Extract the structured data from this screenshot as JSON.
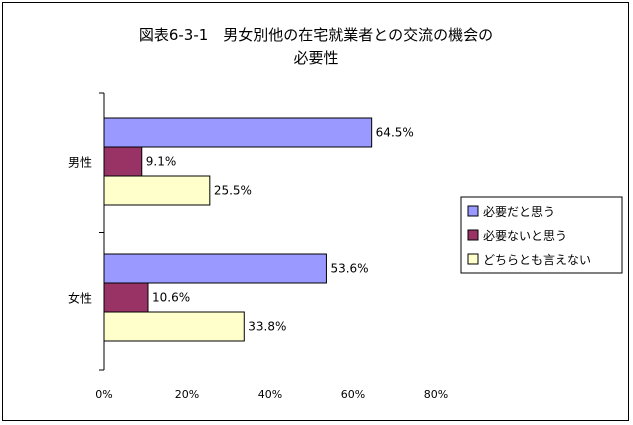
{
  "chart_data": {
    "type": "bar",
    "orientation": "horizontal",
    "title_lines": [
      "図表6-3-1　男女別他の在宅就業者との交流の機会の",
      "必要性"
    ],
    "categories": [
      "男性",
      "女性"
    ],
    "series": [
      {
        "name": "必要だと思う",
        "values": [
          64.5,
          53.6
        ],
        "labels": [
          "64.5%",
          "53.6%"
        ],
        "color": "#9999ff"
      },
      {
        "name": "必要ないと思う",
        "values": [
          9.1,
          10.6
        ],
        "labels": [
          "9.1%",
          "10.6%"
        ],
        "color": "#993366"
      },
      {
        "name": "どちらとも言えない",
        "values": [
          25.5,
          33.8
        ],
        "labels": [
          "25.5%",
          "33.8%"
        ],
        "color": "#ffffcc"
      }
    ],
    "xlim": [
      0,
      80
    ],
    "xticks": [
      0,
      20,
      40,
      60,
      80
    ],
    "xtick_labels": [
      "0%",
      "20%",
      "40%",
      "60%",
      "80%"
    ],
    "grid": false,
    "legend_position": "right"
  }
}
